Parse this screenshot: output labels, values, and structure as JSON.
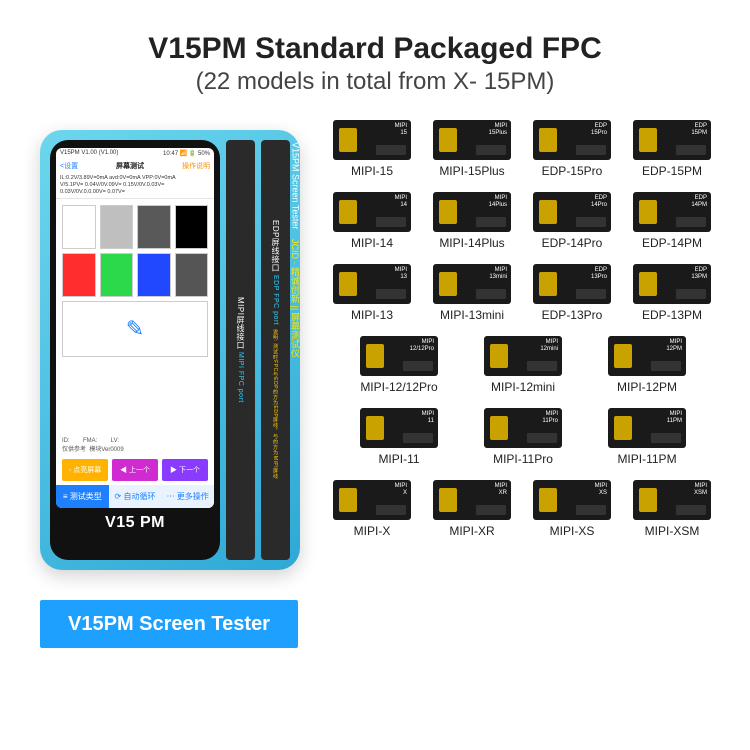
{
  "title": {
    "main": "V15PM Standard Packaged FPC",
    "sub": "(22 models in total from X- 15PM)"
  },
  "caption": "V15PM Screen Tester",
  "device": {
    "brand": "V15 PM",
    "status_left": "V15PM V1.00 (V1.00)",
    "status_right": "10:47 📶 🔋 50%",
    "head_left": "<设置",
    "head_center": "屏幕测试",
    "head_right": "操作说明",
    "readout1": "IL:0.2V/3.89V=0mA  avd:0V=0mA  VPP:0V=0mA",
    "readout2": "V/5.1PV= 0.04V/0V.09V= 0.15V/0V.0.03V= 0.03V/0V.0.0.00V= 0.07V=",
    "swatches": [
      [
        "#ffffff",
        "#bfbfbf",
        "#595959",
        "#000000"
      ],
      [
        "#ff2d2d",
        "#2bd94a",
        "#2248ff",
        "#555555"
      ]
    ],
    "icon_label": "✎",
    "info": "ID:        FMA:        LV:\n仅供参考  模块Ver0009",
    "buttons": [
      {
        "label": "◦ 点亮屏幕",
        "bg": "#ffb300"
      },
      {
        "label": "◀ 上一个",
        "bg": "#d02bd0"
      },
      {
        "label": "▶ 下一个",
        "bg": "#8a3bff"
      }
    ],
    "tabs": [
      {
        "label": "≡ 测试类型",
        "bg": "#1e80ff",
        "fg": "#fff"
      },
      {
        "label": "⟳ 自动循环",
        "bg": "#e8f3ff",
        "fg": "#1e80ff"
      },
      {
        "label": "⋯ 更多操作",
        "bg": "#e8f3ff",
        "fg": "#1e80ff"
      }
    ],
    "ports": [
      {
        "cn": "MIPI屏线接口",
        "en": "MIPI FPC port"
      },
      {
        "cn": "EDP屏线接口",
        "en": "EDP FPC port"
      }
    ],
    "port_note_cn": "说明: 测试时FPC与EDP的方为EDP屏线，与的方为MIPI屏线",
    "side_big": "V15PM Screen Tester",
    "side_cn": "JCID · 精诚创新 || 屏幕测试仪"
  },
  "fpc": {
    "rows": [
      {
        "cols": 4,
        "items": [
          {
            "label": "MIPI-15",
            "chip": "MIPI\n15"
          },
          {
            "label": "MIPI-15Plus",
            "chip": "MIPI\n15Plus"
          },
          {
            "label": "EDP-15Pro",
            "chip": "EDP\n15Pro"
          },
          {
            "label": "EDP-15PM",
            "chip": "EDP\n15PM"
          }
        ]
      },
      {
        "cols": 4,
        "items": [
          {
            "label": "MIPI-14",
            "chip": "MIPI\n14"
          },
          {
            "label": "MIPI-14Plus",
            "chip": "MIPI\n14Plus"
          },
          {
            "label": "EDP-14Pro",
            "chip": "EDP\n14Pro"
          },
          {
            "label": "EDP-14PM",
            "chip": "EDP\n14PM"
          }
        ]
      },
      {
        "cols": 4,
        "items": [
          {
            "label": "MIPI-13",
            "chip": "MIPI\n13"
          },
          {
            "label": "MIPI-13mini",
            "chip": "MIPI\n13mini"
          },
          {
            "label": "EDP-13Pro",
            "chip": "EDP\n13Pro"
          },
          {
            "label": "EDP-13PM",
            "chip": "EDP\n13PM"
          }
        ]
      },
      {
        "cols": 3,
        "items": [
          {
            "label": "MIPI-12/12Pro",
            "chip": "MIPI\n12/12Pro"
          },
          {
            "label": "MIPI-12mini",
            "chip": "MIPI\n12mini"
          },
          {
            "label": "MIPI-12PM",
            "chip": "MIPI\n12PM"
          }
        ]
      },
      {
        "cols": 3,
        "items": [
          {
            "label": "MIPI-11",
            "chip": "MIPI\n11"
          },
          {
            "label": "MIPI-11Pro",
            "chip": "MIPI\n11Pro"
          },
          {
            "label": "MIPI-11PM",
            "chip": "MIPI\n11PM"
          }
        ]
      },
      {
        "cols": 4,
        "items": [
          {
            "label": "MIPI-X",
            "chip": "MIPI\nX"
          },
          {
            "label": "MIPI-XR",
            "chip": "MIPI\nXR"
          },
          {
            "label": "MIPI-XS",
            "chip": "MIPI\nXS"
          },
          {
            "label": "MIPI-XSM",
            "chip": "MIPI\nXSM"
          }
        ]
      }
    ]
  }
}
